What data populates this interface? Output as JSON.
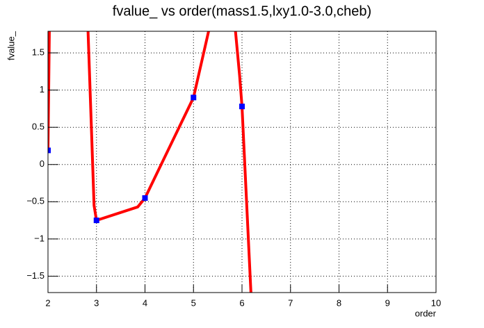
{
  "chart_data": {
    "type": "line",
    "title": "fvalue_ vs order(mass1.5,lxy1.0-3.0,cheb)",
    "x_label": "order",
    "y_label": "fvalue_",
    "xlim": [
      2,
      10
    ],
    "ylim": [
      -1.72,
      1.79
    ],
    "xticks": [
      2,
      3,
      4,
      5,
      6,
      7,
      8,
      9,
      10
    ],
    "yticks": [
      {
        "value": -1.5,
        "label": "−1.5"
      },
      {
        "value": -1,
        "label": "−1"
      },
      {
        "value": -0.5,
        "label": "−0.5"
      },
      0,
      0.5,
      1,
      1.5
    ],
    "grid": true,
    "curve": {
      "color": "#ff0000",
      "x": [
        2,
        2.03,
        2.5,
        2.82,
        2.9,
        2.95,
        3,
        3.85,
        4,
        5,
        5.35,
        5.6,
        5.85,
        5.95,
        6,
        6.19
      ],
      "values": [
        0.19,
        1.9,
        null,
        1.9,
        0.4,
        -0.55,
        -0.75,
        -0.57,
        -0.45,
        0.9,
        1.9,
        null,
        1.9,
        1.2,
        0.78,
        -1.8
      ]
    },
    "points": {
      "color": "#0000ff",
      "x": [
        2,
        3,
        4,
        5,
        6
      ],
      "values": [
        0.19,
        -0.75,
        -0.45,
        0.9,
        0.78
      ]
    }
  }
}
